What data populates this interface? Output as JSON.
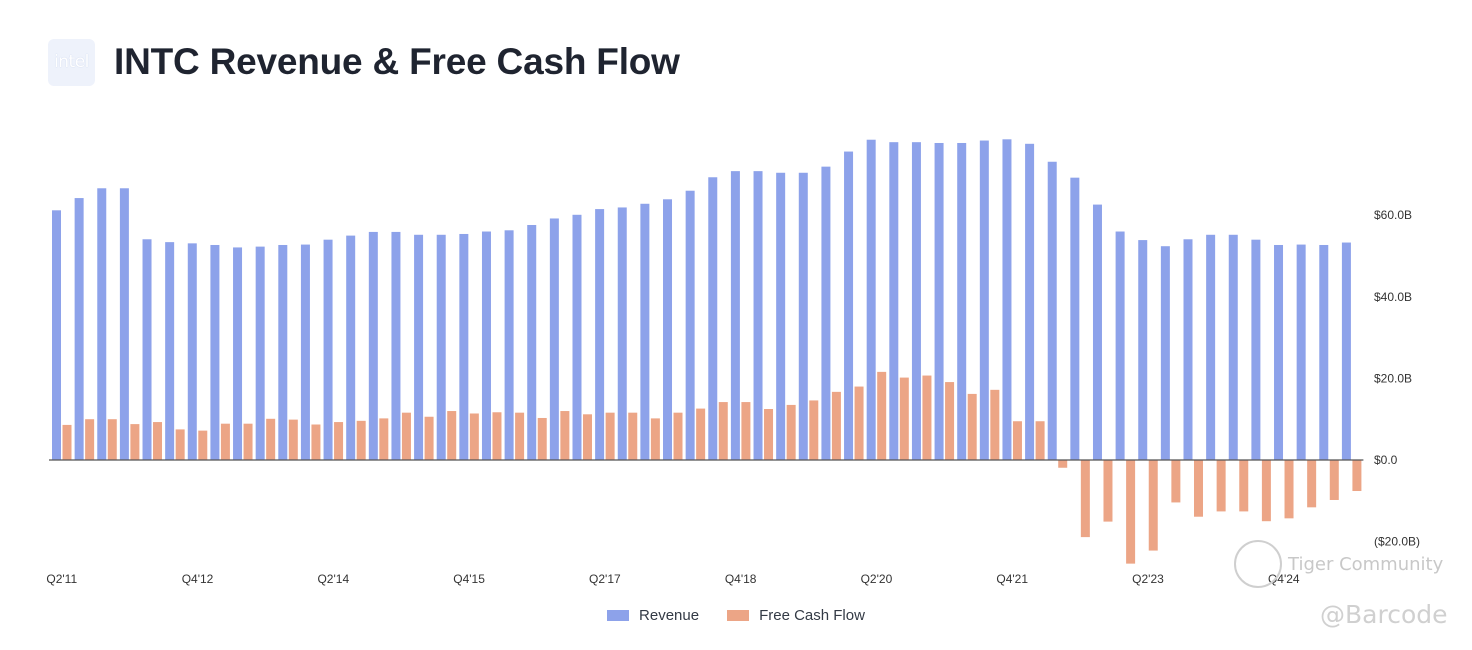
{
  "header": {
    "logo_text": "intel",
    "title": "INTC Revenue & Free Cash Flow"
  },
  "watermarks": {
    "community": "Tiger Community",
    "handle": "@Barcode"
  },
  "colors": {
    "revenue": "#8da2ea",
    "fcf": "#eca586",
    "axis": "#555555",
    "title": "#1f2430"
  },
  "chart_data": {
    "type": "bar",
    "title": "INTC Revenue & Free Cash Flow",
    "xlabel": "",
    "ylabel": "",
    "ylim": [
      -25,
      80
    ],
    "y_ticks": [
      60,
      40,
      20,
      0,
      -20
    ],
    "y_tick_labels": [
      "$60.0B",
      "$40.0B",
      "$20.0B",
      "$0.0",
      "($20.0B)"
    ],
    "y_axis_side": "right",
    "grid": false,
    "legend_position": "bottom-center",
    "categories": [
      "Q2'11",
      "Q3'11",
      "Q4'11",
      "Q1'12",
      "Q2'12",
      "Q3'12",
      "Q4'12",
      "Q1'13",
      "Q2'13",
      "Q3'13",
      "Q4'13",
      "Q1'14",
      "Q2'14",
      "Q3'14",
      "Q4'14",
      "Q1'15",
      "Q2'15",
      "Q3'15",
      "Q4'15",
      "Q1'16",
      "Q2'16",
      "Q3'16",
      "Q4'16",
      "Q1'17",
      "Q2'17",
      "Q3'17",
      "Q4'17",
      "Q1'18",
      "Q2'18",
      "Q3'18",
      "Q4'18",
      "Q1'19",
      "Q2'19",
      "Q3'19",
      "Q4'19",
      "Q1'20",
      "Q2'20",
      "Q3'20",
      "Q4'20",
      "Q1'21",
      "Q2'21",
      "Q3'21",
      "Q4'21",
      "Q1'22",
      "Q2'22",
      "Q3'22",
      "Q4'22",
      "Q1'23",
      "Q2'23",
      "Q3'23",
      "Q4'23",
      "Q1'24",
      "Q2'24",
      "Q3'24",
      "Q4'24",
      "Q1'25",
      "Q2'25",
      "Q3'25"
    ],
    "x_tick_labels": [
      {
        "index": 0,
        "label": "Q2'11"
      },
      {
        "index": 6,
        "label": "Q4'12"
      },
      {
        "index": 12,
        "label": "Q2'14"
      },
      {
        "index": 18,
        "label": "Q4'15"
      },
      {
        "index": 24,
        "label": "Q2'17"
      },
      {
        "index": 30,
        "label": "Q4'18"
      },
      {
        "index": 36,
        "label": "Q2'20"
      },
      {
        "index": 42,
        "label": "Q4'21"
      },
      {
        "index": 48,
        "label": "Q2'23"
      },
      {
        "index": 54,
        "label": "Q4'24"
      }
    ],
    "series": [
      {
        "name": "Revenue",
        "values": [
          61.2,
          64.2,
          66.6,
          66.6,
          54.1,
          53.4,
          53.1,
          52.7,
          52.1,
          52.3,
          52.7,
          52.8,
          54.0,
          55.0,
          55.9,
          55.9,
          55.2,
          55.2,
          55.4,
          56.0,
          56.3,
          57.6,
          59.2,
          60.1,
          61.5,
          61.9,
          62.8,
          63.9,
          66.0,
          69.3,
          70.8,
          70.8,
          70.4,
          70.4,
          71.9,
          75.6,
          78.5,
          77.9,
          77.9,
          77.7,
          77.7,
          78.3,
          78.6,
          77.5,
          73.1,
          69.2,
          62.6,
          56.0,
          53.9,
          52.4,
          54.1,
          55.2,
          55.2,
          54.0,
          52.7,
          52.8,
          52.7,
          53.3
        ]
      },
      {
        "name": "Free Cash Flow",
        "values": [
          8.6,
          10.0,
          10.0,
          8.8,
          9.3,
          7.5,
          7.2,
          8.9,
          8.9,
          10.1,
          9.9,
          8.7,
          9.3,
          9.6,
          10.2,
          11.6,
          10.6,
          12.0,
          11.4,
          11.7,
          11.6,
          10.3,
          12.0,
          11.2,
          11.6,
          11.6,
          10.2,
          11.6,
          12.6,
          14.2,
          14.2,
          12.5,
          13.5,
          14.6,
          16.7,
          18.0,
          21.6,
          20.2,
          20.7,
          19.1,
          16.2,
          17.2,
          9.5,
          9.5,
          -1.9,
          -18.9,
          -15.1,
          -25.4,
          -22.2,
          -10.4,
          -13.9,
          -12.6,
          -12.6,
          -15.0,
          -14.3,
          -11.6,
          -9.8,
          -7.6
        ]
      }
    ]
  }
}
